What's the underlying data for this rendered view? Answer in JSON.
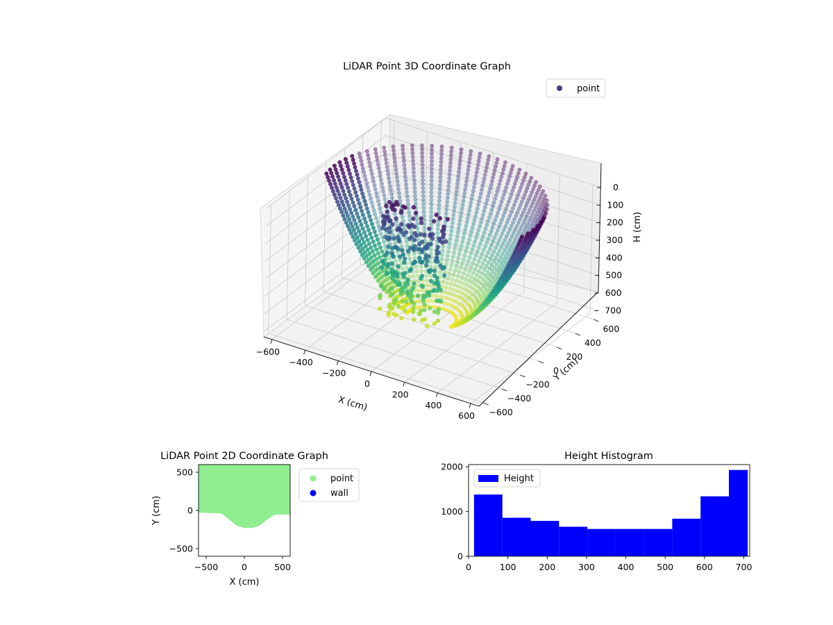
{
  "chart_data": [
    {
      "type": "scatter",
      "projection": "3d",
      "title": "LiDAR Point 3D Coordinate Graph",
      "xlabel": "X (cm)",
      "ylabel": "Y (cm)",
      "zlabel": "H (cm)",
      "xlim": [
        -650,
        650
      ],
      "ylim": [
        -650,
        650
      ],
      "zlim": [
        730,
        0
      ],
      "z_axis_inverted": true,
      "xticks": [
        "−600",
        "−400",
        "−200",
        "0",
        "200",
        "400",
        "600"
      ],
      "yticks": [
        "−600",
        "−400",
        "−200",
        "0",
        "200",
        "400",
        "600"
      ],
      "zticks": [
        "0",
        "100",
        "200",
        "300",
        "400",
        "500",
        "600",
        "700"
      ],
      "grid": true,
      "legend": {
        "entries": [
          {
            "label": "point",
            "color": "#433e85"
          }
        ],
        "placement": "top-right"
      },
      "colormap": "viridis",
      "series": [
        {
          "name": "point"
        }
      ]
    },
    {
      "type": "scatter",
      "title": "LiDAR Point 2D Coordinate Graph",
      "xlabel": "X (cm)",
      "ylabel": "Y (cm)",
      "xlim": [
        -600,
        600
      ],
      "ylim": [
        -600,
        600
      ],
      "xticks": [
        "−500",
        "0",
        "500"
      ],
      "yticks": [
        "−500",
        "0",
        "500"
      ],
      "legend": {
        "entries": [
          {
            "label": "point",
            "color": "#90ee90"
          },
          {
            "label": "wall",
            "color": "#0000ff"
          }
        ],
        "placement": "outside-right"
      },
      "series": [
        {
          "name": "point",
          "color": "#90ee90"
        },
        {
          "name": "wall",
          "color": "#0000ff"
        }
      ],
      "point_region_lower_boundary": [
        [
          -600,
          -30
        ],
        [
          -300,
          -40
        ],
        [
          -200,
          -120
        ],
        [
          -100,
          -200
        ],
        [
          0,
          -230
        ],
        [
          100,
          -230
        ],
        [
          200,
          -200
        ],
        [
          300,
          -120
        ],
        [
          400,
          -55
        ],
        [
          600,
          -55
        ]
      ]
    },
    {
      "type": "bar",
      "subtype": "histogram",
      "title": "Height Histogram",
      "legend": {
        "entries": [
          {
            "label": "Height",
            "color": "#0000ff"
          }
        ],
        "placement": "top-left"
      },
      "xlim": [
        0,
        715
      ],
      "ylim": [
        0,
        2050
      ],
      "xticks": [
        "0",
        "100",
        "200",
        "300",
        "400",
        "500",
        "600",
        "700"
      ],
      "yticks": [
        "0",
        "1000",
        "2000"
      ],
      "bin_edges": [
        14,
        86,
        158,
        230,
        302,
        374,
        446,
        518,
        590,
        662,
        710
      ],
      "values": [
        1380,
        860,
        790,
        660,
        610,
        610,
        610,
        840,
        1340,
        1930
      ],
      "series": [
        {
          "name": "Height",
          "color": "#0000ff"
        }
      ]
    }
  ]
}
